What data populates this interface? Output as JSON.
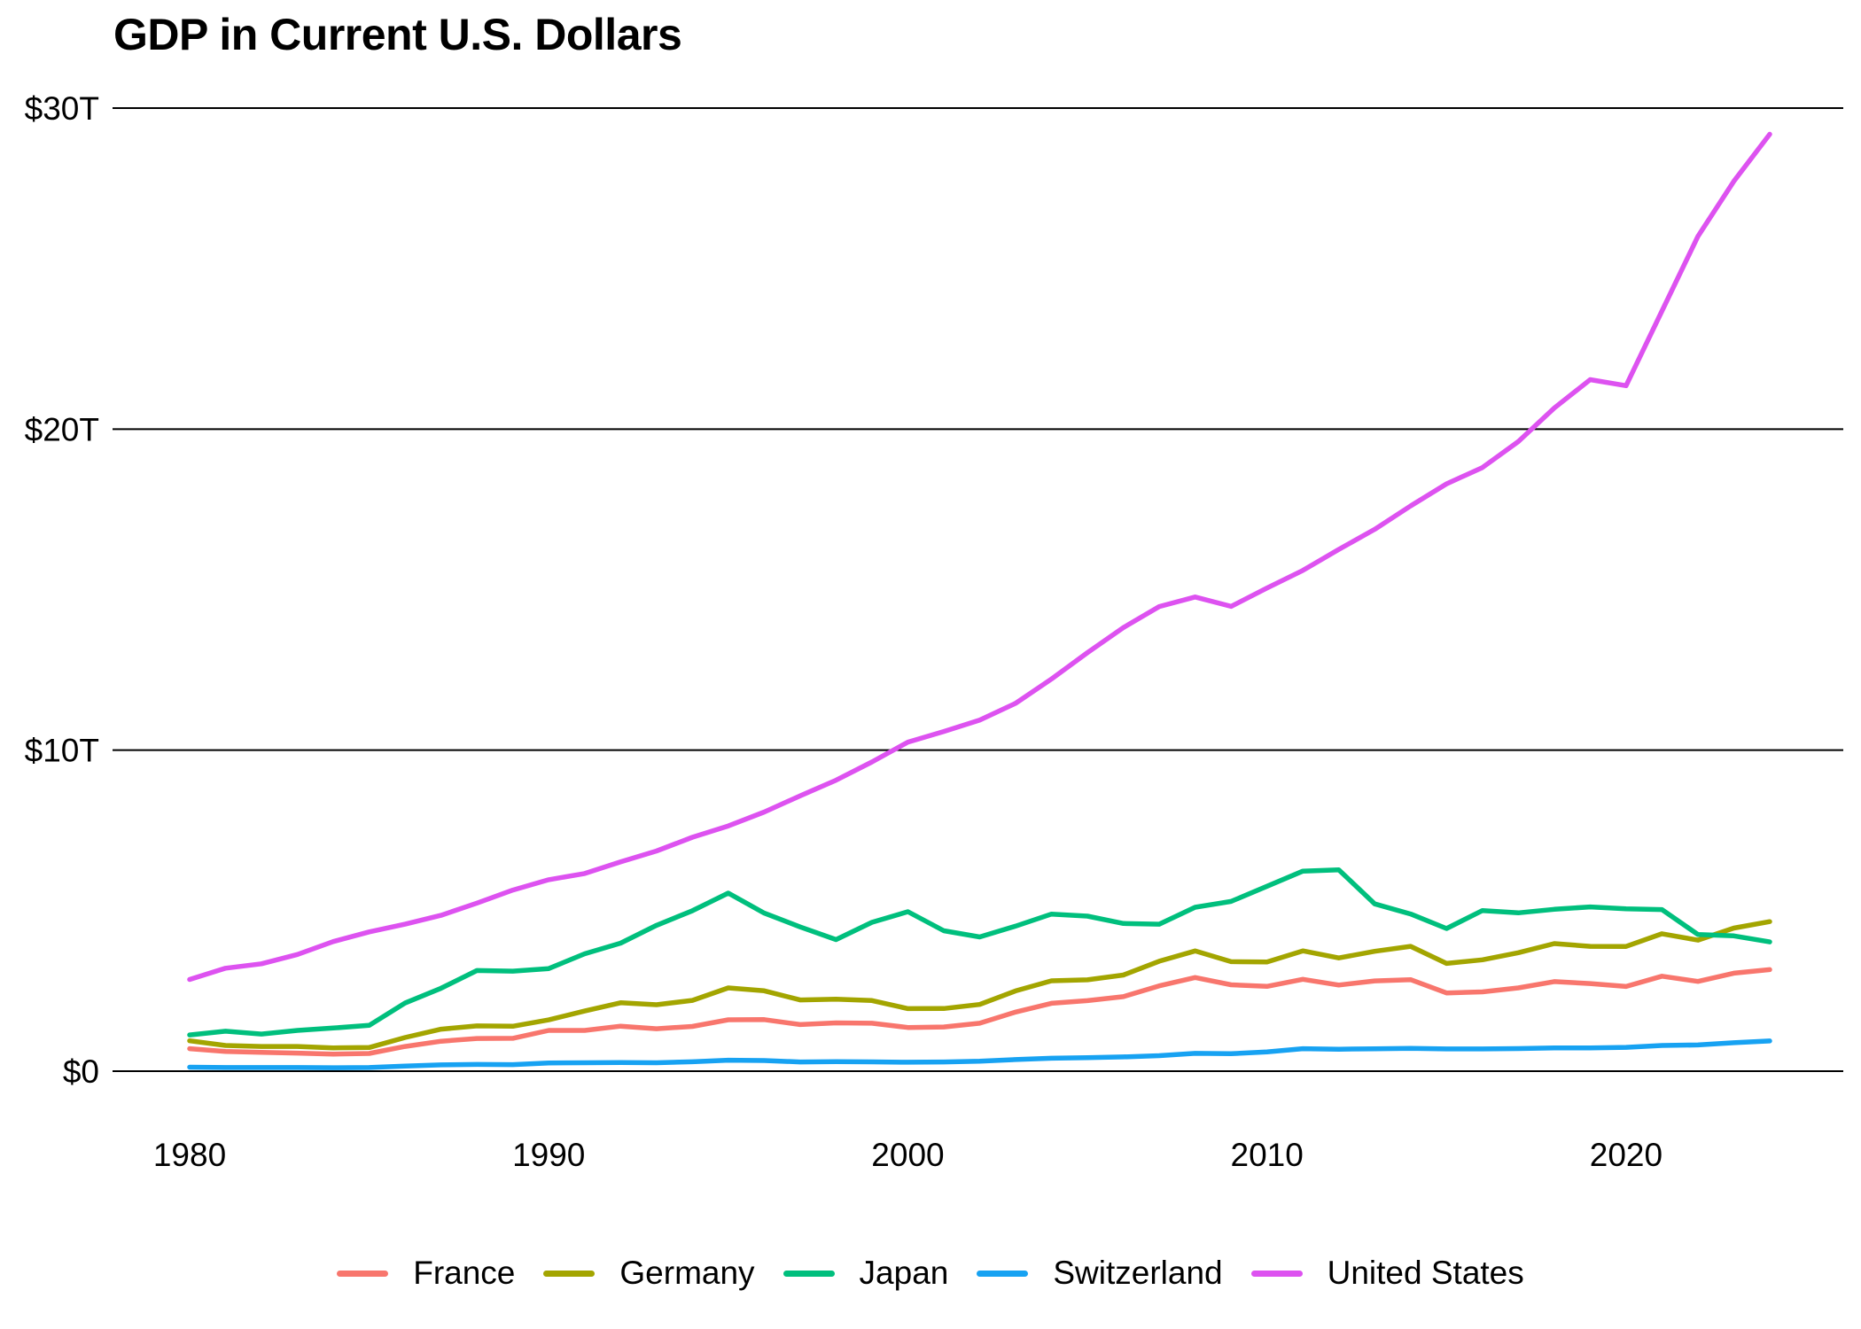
{
  "title": "GDP in Current U.S. Dollars",
  "chart_data": {
    "type": "line",
    "title": "GDP in Current U.S. Dollars",
    "x_years": [
      1980,
      1981,
      1982,
      1983,
      1984,
      1985,
      1986,
      1987,
      1988,
      1989,
      1990,
      1991,
      1992,
      1993,
      1994,
      1995,
      1996,
      1997,
      1998,
      1999,
      2000,
      2001,
      2002,
      2003,
      2004,
      2005,
      2006,
      2007,
      2008,
      2009,
      2010,
      2011,
      2012,
      2013,
      2014,
      2015,
      2016,
      2017,
      2018,
      2019,
      2020,
      2021,
      2022,
      2023,
      2024
    ],
    "series": [
      {
        "name": "France",
        "color": "#F8766D",
        "values": [
          0.701,
          0.616,
          0.584,
          0.563,
          0.532,
          0.553,
          0.771,
          0.934,
          1.019,
          1.025,
          1.269,
          1.269,
          1.401,
          1.322,
          1.394,
          1.601,
          1.605,
          1.452,
          1.503,
          1.492,
          1.362,
          1.377,
          1.494,
          1.84,
          2.115,
          2.196,
          2.32,
          2.657,
          2.918,
          2.69,
          2.642,
          2.861,
          2.683,
          2.811,
          2.852,
          2.438,
          2.471,
          2.595,
          2.79,
          2.729,
          2.639,
          2.959,
          2.796,
          3.052,
          3.162
        ]
      },
      {
        "name": "Germany",
        "color": "#A3A500",
        "values": [
          0.947,
          0.8,
          0.771,
          0.77,
          0.725,
          0.736,
          1.05,
          1.308,
          1.409,
          1.398,
          1.599,
          1.874,
          2.132,
          2.071,
          2.206,
          2.594,
          2.504,
          2.218,
          2.243,
          2.199,
          1.948,
          1.95,
          2.079,
          2.501,
          2.814,
          2.846,
          2.994,
          3.425,
          3.746,
          3.411,
          3.399,
          3.749,
          3.527,
          3.733,
          3.889,
          3.357,
          3.469,
          3.69,
          3.974,
          3.889,
          3.887,
          4.281,
          4.082,
          4.456,
          4.66
        ]
      },
      {
        "name": "Japan",
        "color": "#00BF7D",
        "values": [
          1.129,
          1.245,
          1.157,
          1.269,
          1.345,
          1.427,
          2.121,
          2.584,
          3.134,
          3.117,
          3.196,
          3.657,
          3.988,
          4.544,
          4.998,
          5.546,
          4.923,
          4.492,
          4.098,
          4.636,
          4.968,
          4.374,
          4.182,
          4.519,
          4.893,
          4.831,
          4.601,
          4.579,
          5.106,
          5.289,
          5.759,
          6.233,
          6.272,
          5.212,
          4.897,
          4.444,
          5.004,
          4.931,
          5.041,
          5.118,
          5.055,
          5.034,
          4.256,
          4.213,
          4.026
        ]
      },
      {
        "name": "Switzerland",
        "color": "#17A2F2",
        "values": [
          0.124,
          0.113,
          0.114,
          0.114,
          0.109,
          0.112,
          0.157,
          0.196,
          0.211,
          0.204,
          0.258,
          0.262,
          0.267,
          0.263,
          0.292,
          0.342,
          0.33,
          0.287,
          0.295,
          0.289,
          0.279,
          0.286,
          0.31,
          0.362,
          0.404,
          0.421,
          0.443,
          0.483,
          0.556,
          0.543,
          0.598,
          0.7,
          0.684,
          0.698,
          0.712,
          0.694,
          0.694,
          0.703,
          0.726,
          0.722,
          0.742,
          0.8,
          0.818,
          0.885,
          0.942
        ]
      },
      {
        "name": "United States",
        "color": "#DD52F0",
        "values": [
          2.857,
          3.207,
          3.344,
          3.634,
          4.038,
          4.339,
          4.58,
          4.855,
          5.236,
          5.642,
          5.963,
          6.158,
          6.52,
          6.859,
          7.287,
          7.64,
          8.073,
          8.578,
          9.063,
          9.631,
          10.251,
          10.582,
          10.936,
          11.458,
          12.214,
          13.037,
          13.815,
          14.474,
          14.77,
          14.478,
          15.049,
          15.6,
          16.254,
          16.88,
          17.608,
          18.295,
          18.804,
          19.612,
          20.657,
          21.54,
          21.354,
          23.681,
          26.007,
          27.721,
          29.185
        ]
      }
    ],
    "y_ticks": [
      {
        "label": "$0",
        "value": 0
      },
      {
        "label": "$10T",
        "value": 10
      },
      {
        "label": "$20T",
        "value": 20
      },
      {
        "label": "$30T",
        "value": 30
      }
    ],
    "x_ticks": [
      1980,
      1990,
      2000,
      2010,
      2020
    ],
    "xlim": [
      1980,
      2024
    ],
    "ylim": [
      0,
      30
    ],
    "grid": "horizontal",
    "grid_color": "#000000",
    "legend_position": "bottom"
  }
}
